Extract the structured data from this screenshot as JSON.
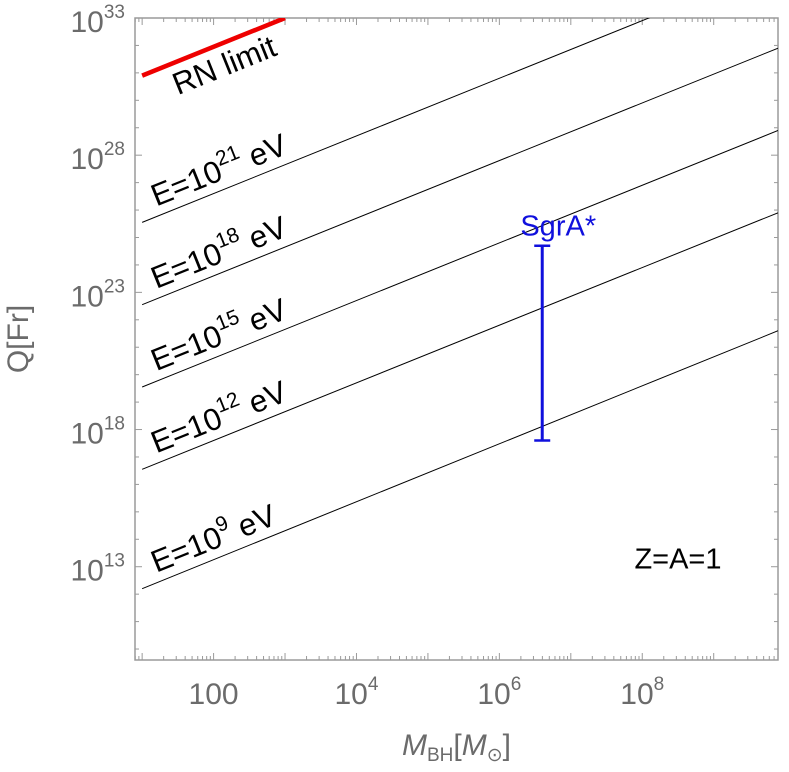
{
  "chart_data": {
    "type": "line",
    "xlabel": {
      "var": "M",
      "sub": "BH",
      "unit_open": "[",
      "unit_var": "M",
      "unit_sub": "⊙",
      "unit_close": "]"
    },
    "ylabel": "Q[Fr]",
    "x_scale": "log",
    "y_scale": "log",
    "xlim_log10": [
      0.9,
      9.9
    ],
    "ylim_log10": [
      9.6,
      33.0
    ],
    "x_ticks": [
      {
        "log": 2,
        "base": "100",
        "exp": ""
      },
      {
        "log": 4,
        "base": "10",
        "exp": "4"
      },
      {
        "log": 6,
        "base": "10",
        "exp": "6"
      },
      {
        "log": 8,
        "base": "10",
        "exp": "8"
      }
    ],
    "y_ticks": [
      {
        "log": 13,
        "base": "10",
        "exp": "13"
      },
      {
        "log": 18,
        "base": "10",
        "exp": "18"
      },
      {
        "log": 23,
        "base": "10",
        "exp": "23"
      },
      {
        "log": 28,
        "base": "10",
        "exp": "28"
      },
      {
        "log": 33,
        "base": "10",
        "exp": "33"
      }
    ],
    "series": [
      {
        "name": "RN limit",
        "color": "#ee0000",
        "x_log10": [
          1.0,
          3.0
        ],
        "y_log10": [
          30.9,
          33.0
        ],
        "label": {
          "text": "RN limit",
          "exp": "",
          "color": "#ee0000"
        }
      },
      {
        "x_log10": [
          1.0,
          9.9
        ],
        "y_log10": [
          25.55,
          34.9
        ],
        "label": {
          "base": "E=10",
          "exp": "21",
          "unit": "eV",
          "color": "#000000"
        }
      },
      {
        "x_log10": [
          1.0,
          9.9
        ],
        "y_log10": [
          22.55,
          31.9
        ],
        "label": {
          "base": "E=10",
          "exp": "18",
          "unit": "eV",
          "color": "#000000"
        }
      },
      {
        "x_log10": [
          1.0,
          9.9
        ],
        "y_log10": [
          19.55,
          28.9
        ],
        "label": {
          "base": "E=10",
          "exp": "15",
          "unit": "eV",
          "color": "#000000"
        }
      },
      {
        "x_log10": [
          1.0,
          9.9
        ],
        "y_log10": [
          16.55,
          25.9
        ],
        "label": {
          "base": "E=10",
          "exp": "12",
          "unit": "eV",
          "color": "#000000"
        }
      },
      {
        "x_log10": [
          1.0,
          9.9
        ],
        "y_log10": [
          12.2,
          21.6
        ],
        "label": {
          "base": "E=10",
          "exp": "9",
          "unit": "eV",
          "color": "#000000"
        }
      }
    ],
    "error_bar": {
      "name": "SgrA*",
      "color": "#1010dd",
      "x_log10": 6.6,
      "y_low_log10": 17.6,
      "y_high_log10": 24.7
    },
    "annotations": [
      {
        "text": "Z=A=1",
        "x_log10": 8.5,
        "y_log10": 13.3,
        "color": "#000000"
      }
    ],
    "grid": false,
    "frame_color": "#9a9a9a"
  }
}
